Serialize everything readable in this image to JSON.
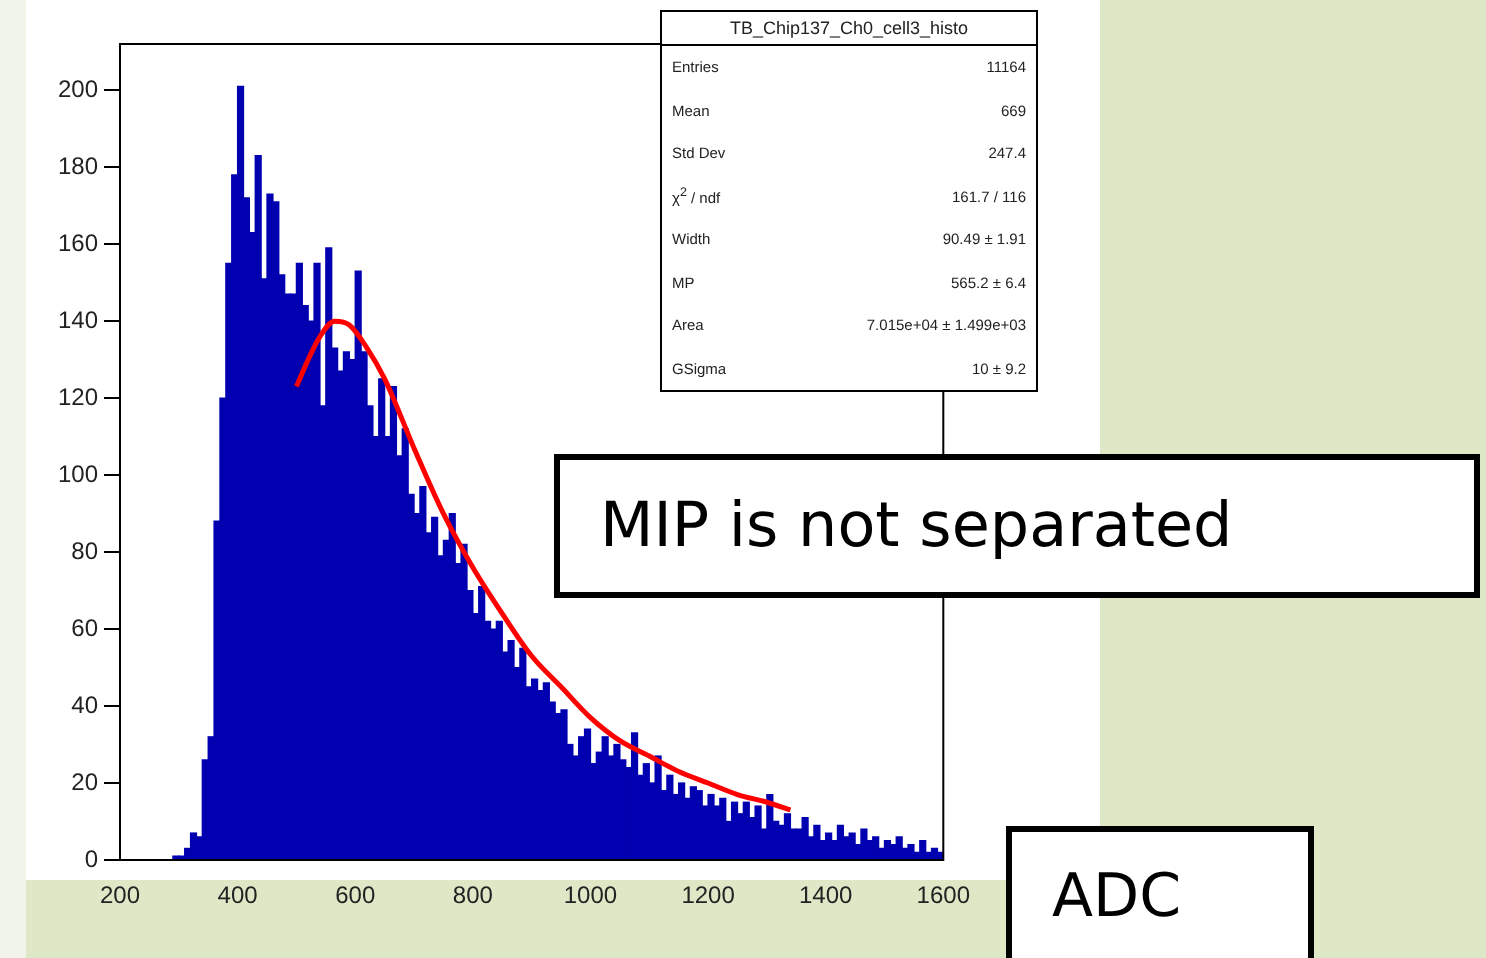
{
  "chart_data": {
    "type": "histogram",
    "xlabel": "ADC",
    "bins": [
      290,
      300,
      310,
      320,
      330,
      340,
      350,
      360,
      370,
      380,
      390,
      400,
      410,
      420,
      430,
      440,
      450,
      460,
      470,
      480,
      490,
      500,
      510,
      520,
      530,
      540,
      550,
      560,
      570,
      580,
      590,
      600,
      610,
      620,
      630,
      640,
      650,
      660,
      670,
      680,
      690,
      700,
      710,
      720,
      730,
      740,
      750,
      760,
      770,
      780,
      790,
      800,
      810,
      820,
      830,
      840,
      850,
      860,
      870,
      880,
      890,
      900,
      910,
      920,
      930,
      940,
      950,
      960,
      970,
      980,
      990,
      1000,
      1010,
      1020,
      1030,
      1040,
      1050,
      1060,
      1070,
      1080,
      1090,
      1100,
      1110,
      1120,
      1130,
      1140,
      1150,
      1160,
      1170,
      1180,
      1190,
      1200,
      1210,
      1220,
      1230,
      1240,
      1250,
      1260,
      1270,
      1280,
      1290,
      1300,
      1310,
      1320,
      1330,
      1340,
      1350,
      1360,
      1370,
      1380,
      1390,
      1400,
      1410,
      1420,
      1430,
      1440,
      1450,
      1460,
      1470,
      1480,
      1490,
      1500,
      1510,
      1520,
      1530,
      1540,
      1550,
      1560,
      1570,
      1580,
      1590,
      1600
    ],
    "series": [
      {
        "color": "#0000b0",
        "values": [
          1,
          1,
          3,
          7,
          6,
          26,
          32,
          88,
          120,
          155,
          178,
          201,
          172,
          163,
          183,
          151,
          173,
          171,
          152,
          147,
          147,
          155,
          144,
          140,
          155,
          118,
          159,
          133,
          127,
          132,
          130,
          153,
          132,
          118,
          110,
          125,
          110,
          123,
          105,
          112,
          95,
          90,
          97,
          85,
          89,
          79,
          83,
          90,
          77,
          82,
          70,
          64,
          71,
          62,
          60,
          62,
          54,
          57,
          50,
          55,
          45,
          47,
          44,
          46,
          41,
          38,
          39,
          30,
          27,
          32,
          34,
          25,
          28,
          32,
          27,
          30,
          26,
          24,
          33,
          22,
          25,
          20,
          27,
          18,
          22,
          17,
          20,
          16,
          19,
          18,
          14,
          17,
          14,
          16,
          10,
          15,
          12,
          15,
          11,
          14,
          8,
          17,
          10,
          9,
          12,
          8,
          8,
          11,
          6,
          9,
          5,
          7,
          5,
          9,
          6,
          7,
          4,
          8,
          5,
          6,
          3,
          5,
          4,
          6,
          3,
          4,
          2,
          5,
          2,
          3,
          2
        ]
      },
      {
        "type": "line",
        "color": "#ff0000",
        "x": [
          500,
          520,
          540,
          565,
          590,
          620,
          650,
          700,
          750,
          800,
          850,
          900,
          950,
          1000,
          1050,
          1100,
          1150,
          1200,
          1250,
          1300,
          1340
        ],
        "values": [
          123,
          130,
          136,
          140,
          139,
          133,
          125,
          107,
          90,
          76,
          64,
          53,
          45,
          37,
          31,
          27,
          23,
          20,
          17,
          15,
          13
        ]
      }
    ],
    "xlim": [
      200,
      1600
    ],
    "xticks": [
      200,
      400,
      600,
      800,
      1000,
      1200,
      1400,
      1600
    ],
    "ylim": [
      0,
      212
    ],
    "yticks": [
      0,
      20,
      40,
      60,
      80,
      100,
      120,
      140,
      160,
      180,
      200
    ],
    "grid": false,
    "legend": false,
    "annotations": [
      "MIP is not separated",
      "TB_Chip137_Ch0_cell3_histo",
      "Entries",
      "11164",
      "Mean",
      "669",
      "Std Dev",
      "247.4",
      "χ$^{2}$ / ndf",
      "161.7 / 116",
      "Width",
      "90.49 ± 1.91",
      "MP",
      "565.2 ± 6.4",
      "Area",
      "7.015e+04 ± 1.499e+03",
      "GSigma",
      "10 ± 9.2"
    ]
  }
}
